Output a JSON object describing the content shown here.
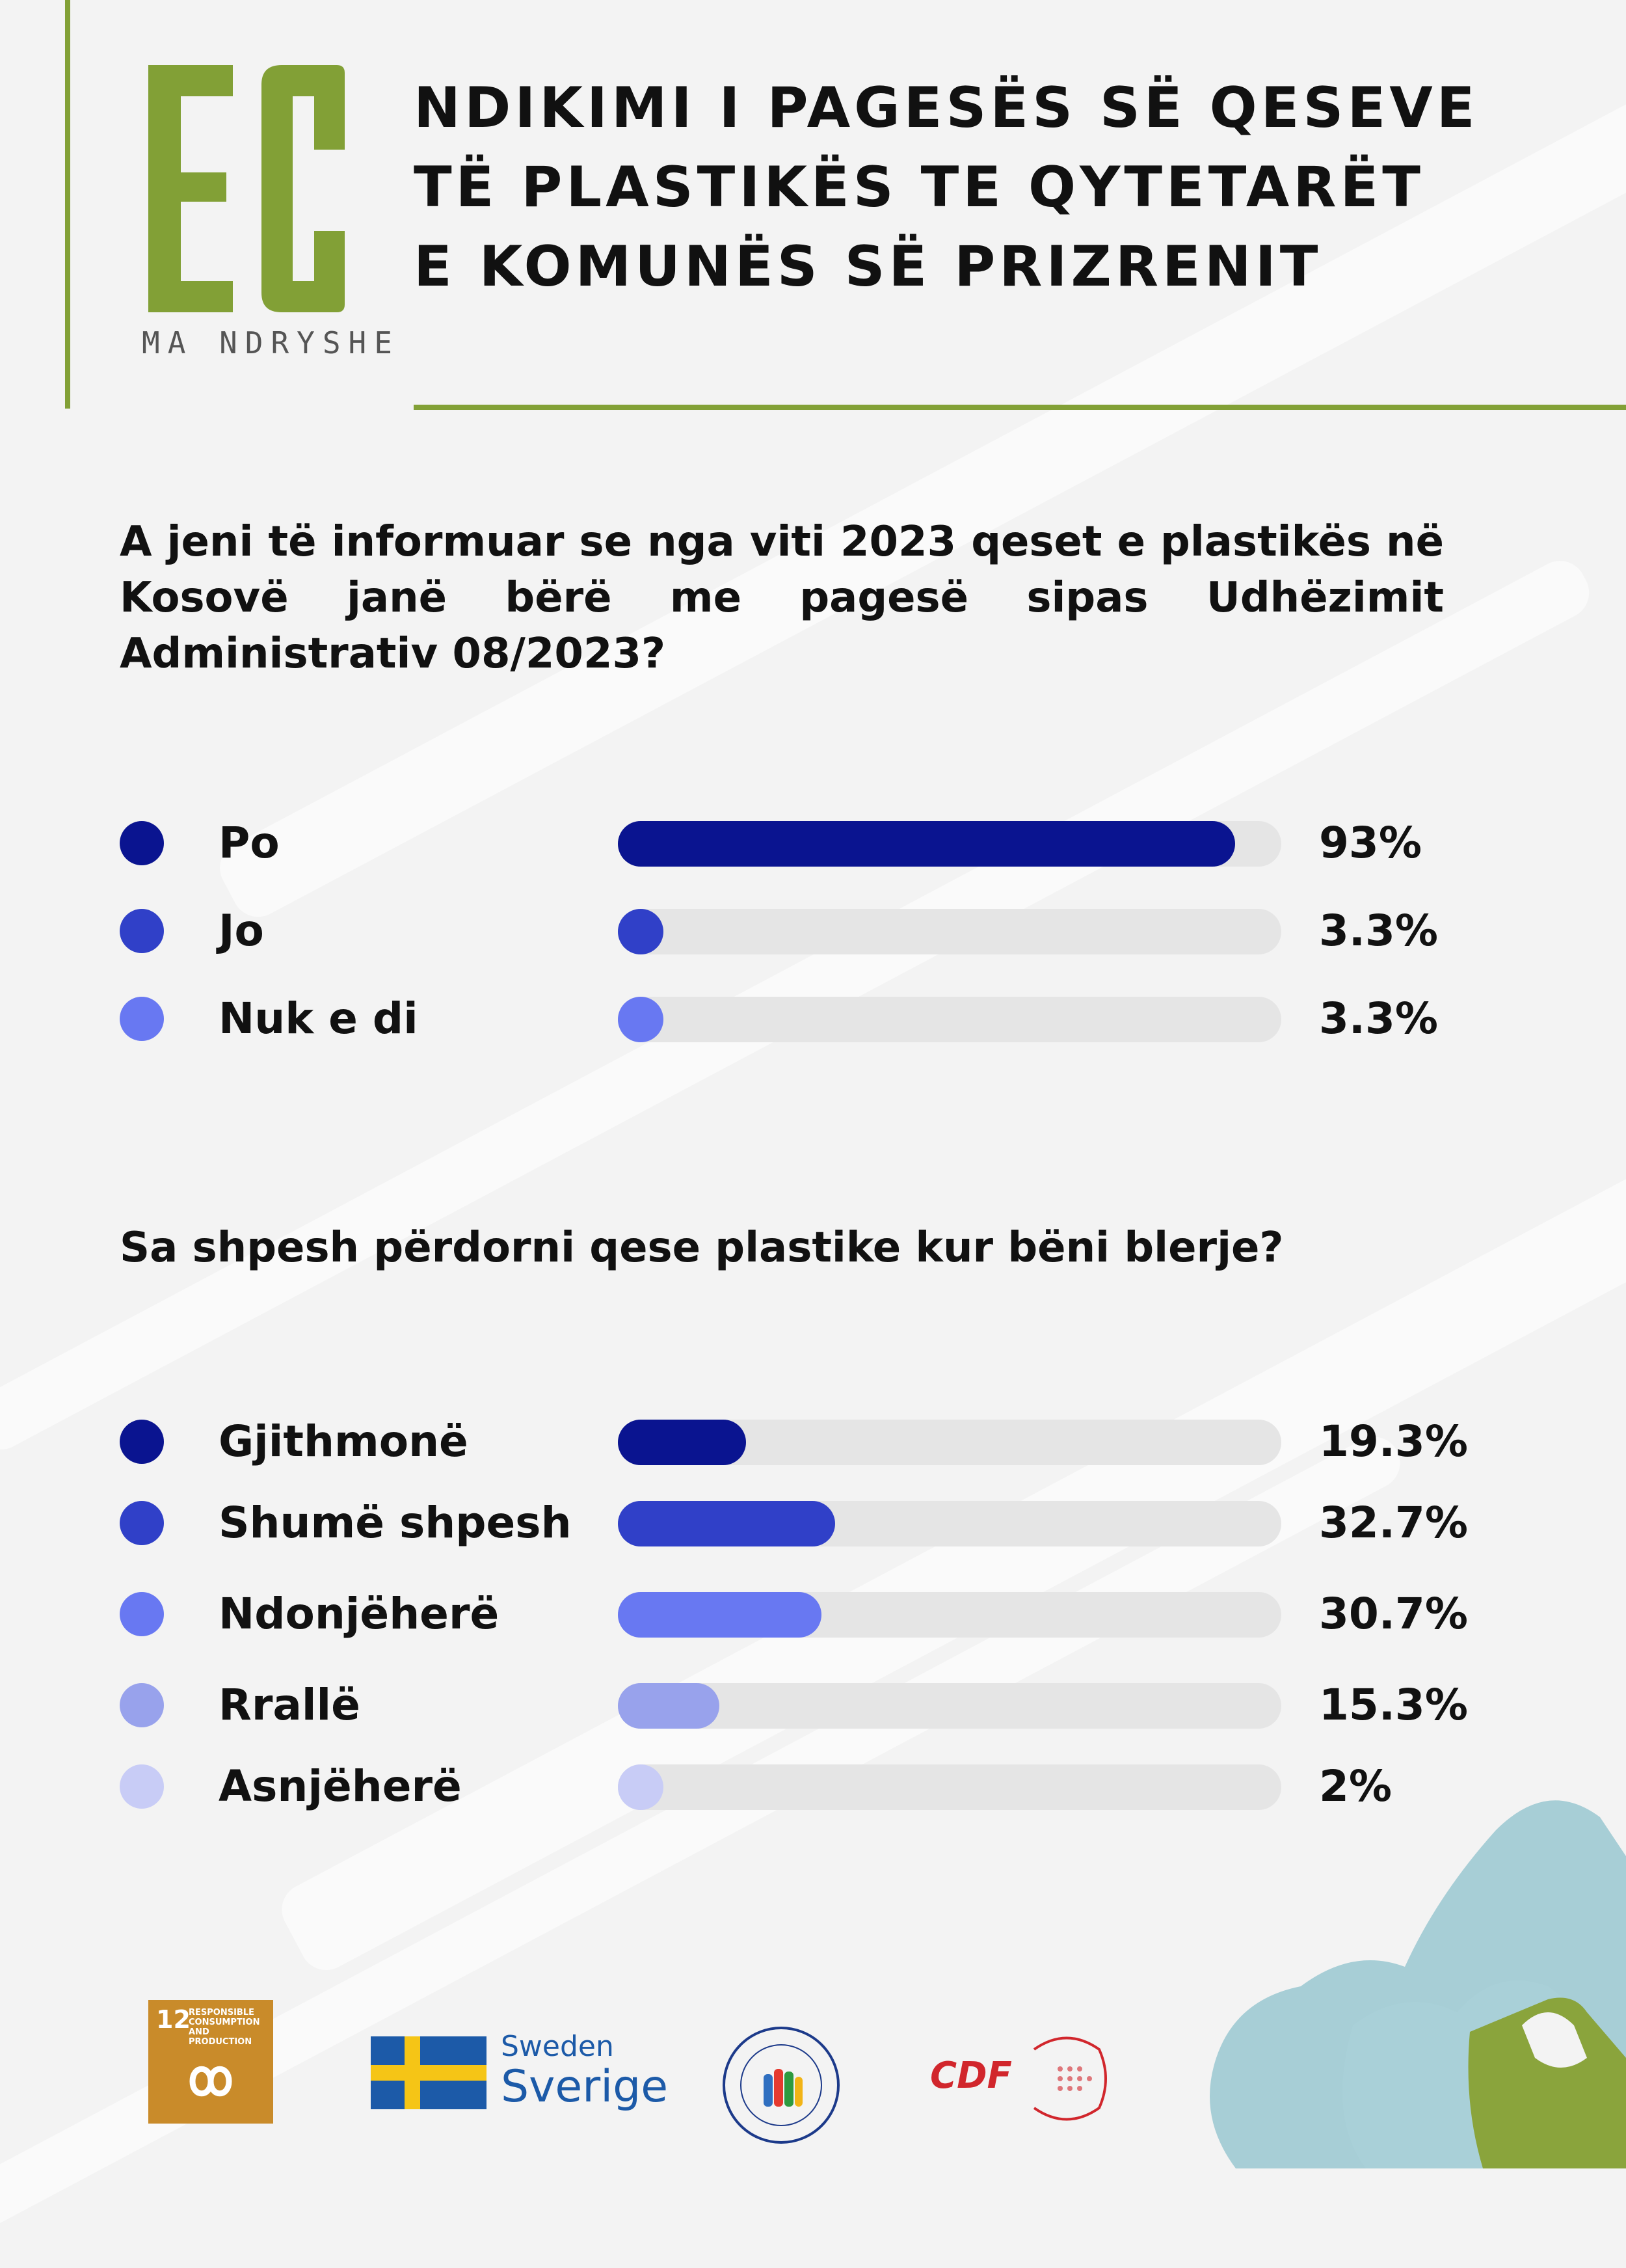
{
  "header": {
    "logo_letters": "EC",
    "logo_subtitle": "MA NDRYSHE",
    "title_lines": [
      "NDIKIMI I PAGESËS SË QESEVE",
      "TË PLASTIKËS TE QYTETARËT",
      "E KOMUNËS SË PRIZRENIT"
    ]
  },
  "colors": {
    "accent_green": "#82a036",
    "track": "#e5e5e5"
  },
  "question1": "A jeni të informuar se nga viti 2023 qeset e plastikës në Kosovë janë bërë me pagesë sipas Udhëzimit Administrativ 08/2023?",
  "question2": "Sa shpesh përdorni qese plastike kur bëni blerje?",
  "chart_data": [
    {
      "type": "bar",
      "orientation": "horizontal",
      "categories": [
        "Po",
        "Jo",
        "Nuk e di"
      ],
      "values": [
        93,
        3.3,
        3.3
      ],
      "value_labels": [
        "93%",
        "3.3%",
        "3.3%"
      ],
      "colors": [
        "#0a1490",
        "#3040c8",
        "#6878f2"
      ],
      "xlim": [
        0,
        100
      ]
    },
    {
      "type": "bar",
      "orientation": "horizontal",
      "categories": [
        "Gjithmonë",
        "Shumë shpesh",
        "Ndonjëherë",
        "Rrallë",
        "Asnjëherë"
      ],
      "values": [
        19.3,
        32.7,
        30.7,
        15.3,
        2
      ],
      "value_labels": [
        "19.3%",
        "32.7%",
        "30.7%",
        "15.3%",
        "2%"
      ],
      "colors": [
        "#0a1490",
        "#3040c8",
        "#6878f2",
        "#98a2ec",
        "#c8ccf6"
      ],
      "xlim": [
        0,
        100
      ]
    }
  ],
  "footer": {
    "sdg_number": "12",
    "sdg_text": "RESPONSIBLE CONSUMPTION AND PRODUCTION",
    "sweden_line1": "Sweden",
    "sweden_line2": "Sverige",
    "cdf_text": "CDF"
  }
}
